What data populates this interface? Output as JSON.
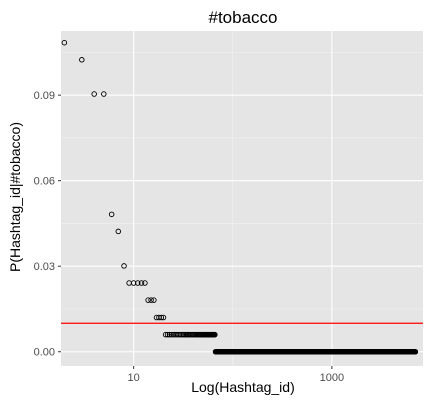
{
  "chart_data": {
    "type": "scatter",
    "title": "#tobacco",
    "xlabel": "Log(Hashtag_id)",
    "ylabel": "P(Hashtag_id|#tobacco)",
    "x_scale": "log10",
    "xlim": [
      1.85,
      8300
    ],
    "ylim": [
      -0.005,
      0.1125
    ],
    "x_ticks": [
      10,
      1000
    ],
    "x_tick_labels": [
      "10",
      "1000"
    ],
    "y_ticks": [
      0.0,
      0.03,
      0.06,
      0.09
    ],
    "y_tick_labels": [
      "0.00",
      "0.03",
      "0.06",
      "0.09"
    ],
    "grid": true,
    "background": "#e5e5e5",
    "point_color": "#000000",
    "hline": {
      "y": 0.01,
      "color": "#ff0000"
    },
    "points": [
      {
        "x": 2,
        "y": 0.1084
      },
      {
        "x": 3,
        "y": 0.1024
      },
      {
        "x": 4,
        "y": 0.0904
      },
      {
        "x": 5,
        "y": 0.0904
      },
      {
        "x": 6,
        "y": 0.0482
      },
      {
        "x": 7,
        "y": 0.0422
      },
      {
        "x": 8,
        "y": 0.0301
      },
      {
        "x": 9,
        "y": 0.0241
      },
      {
        "x": 10,
        "y": 0.0241
      },
      {
        "x": 11,
        "y": 0.0241
      },
      {
        "x": 12,
        "y": 0.0241
      },
      {
        "x": 13,
        "y": 0.0241
      },
      {
        "x": 14,
        "y": 0.0181
      },
      {
        "x": 15,
        "y": 0.0181
      },
      {
        "x": 16,
        "y": 0.0181
      },
      {
        "x": 17,
        "y": 0.012
      },
      {
        "x": 18,
        "y": 0.012
      },
      {
        "x": 19,
        "y": 0.012
      },
      {
        "x": 20,
        "y": 0.012
      }
    ],
    "point_runs": [
      {
        "x_from": 21,
        "x_to": 66,
        "y": 0.006
      },
      {
        "x_from": 67,
        "x_to": 7000,
        "y": 0.0
      }
    ]
  }
}
